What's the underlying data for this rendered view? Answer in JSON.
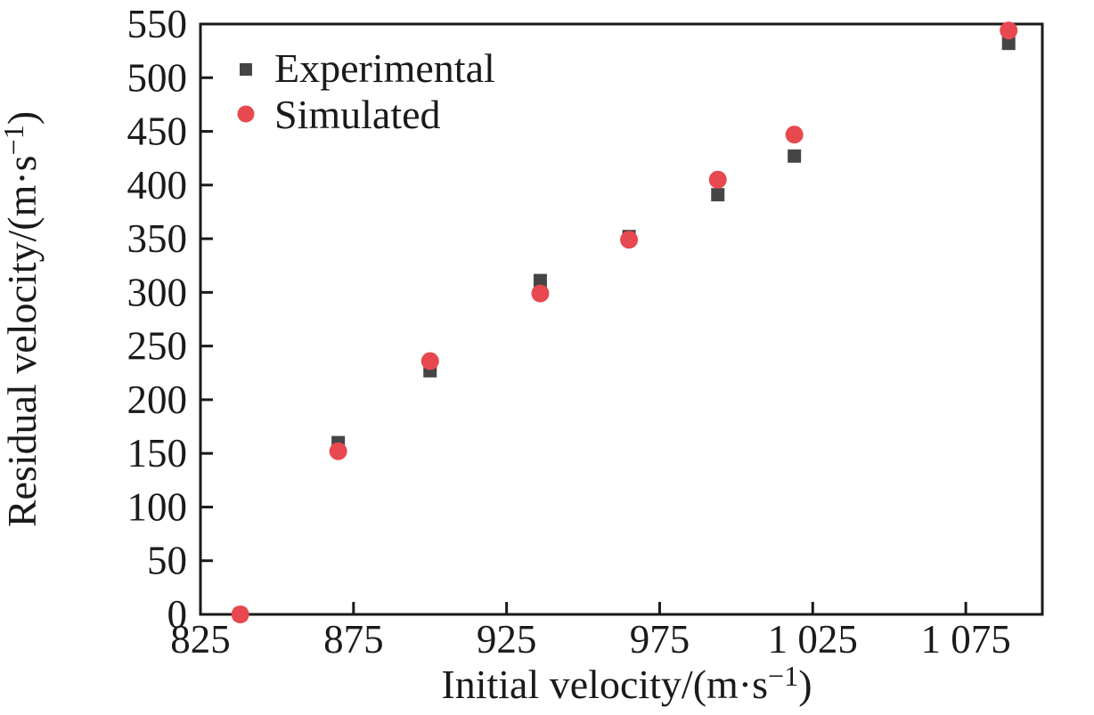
{
  "figure": {
    "background": "#ffffff",
    "axis_color": "#1a1a1a"
  },
  "chart_data": {
    "type": "scatter",
    "title": "",
    "xlabel": "Initial velocity/(m·s⁻¹)",
    "ylabel": "Residual velocity/(m·s⁻¹)",
    "xlim": [
      825,
      1100
    ],
    "ylim": [
      0,
      550
    ],
    "xticks": [
      825,
      875,
      925,
      975,
      1025,
      1075
    ],
    "xtick_labels": [
      "825",
      "875",
      "925",
      "975",
      "1 025",
      "1 075"
    ],
    "yticks": [
      0,
      50,
      100,
      150,
      200,
      250,
      300,
      350,
      400,
      450,
      500,
      550
    ],
    "grid": false,
    "legend_position": "top-left-inside",
    "axis_color": "#1a1a1a",
    "x": [
      838,
      870,
      900,
      936,
      965,
      994,
      1019,
      1089
    ],
    "series": [
      {
        "name": "Experimental",
        "marker": "square",
        "color": "#454545",
        "values": [
          0,
          160,
          227,
          311,
          352,
          391,
          427,
          532
        ]
      },
      {
        "name": "Simulated",
        "marker": "circle",
        "color": "#e8484f",
        "values": [
          0,
          152,
          236,
          299,
          349,
          405,
          447,
          544
        ]
      }
    ]
  }
}
